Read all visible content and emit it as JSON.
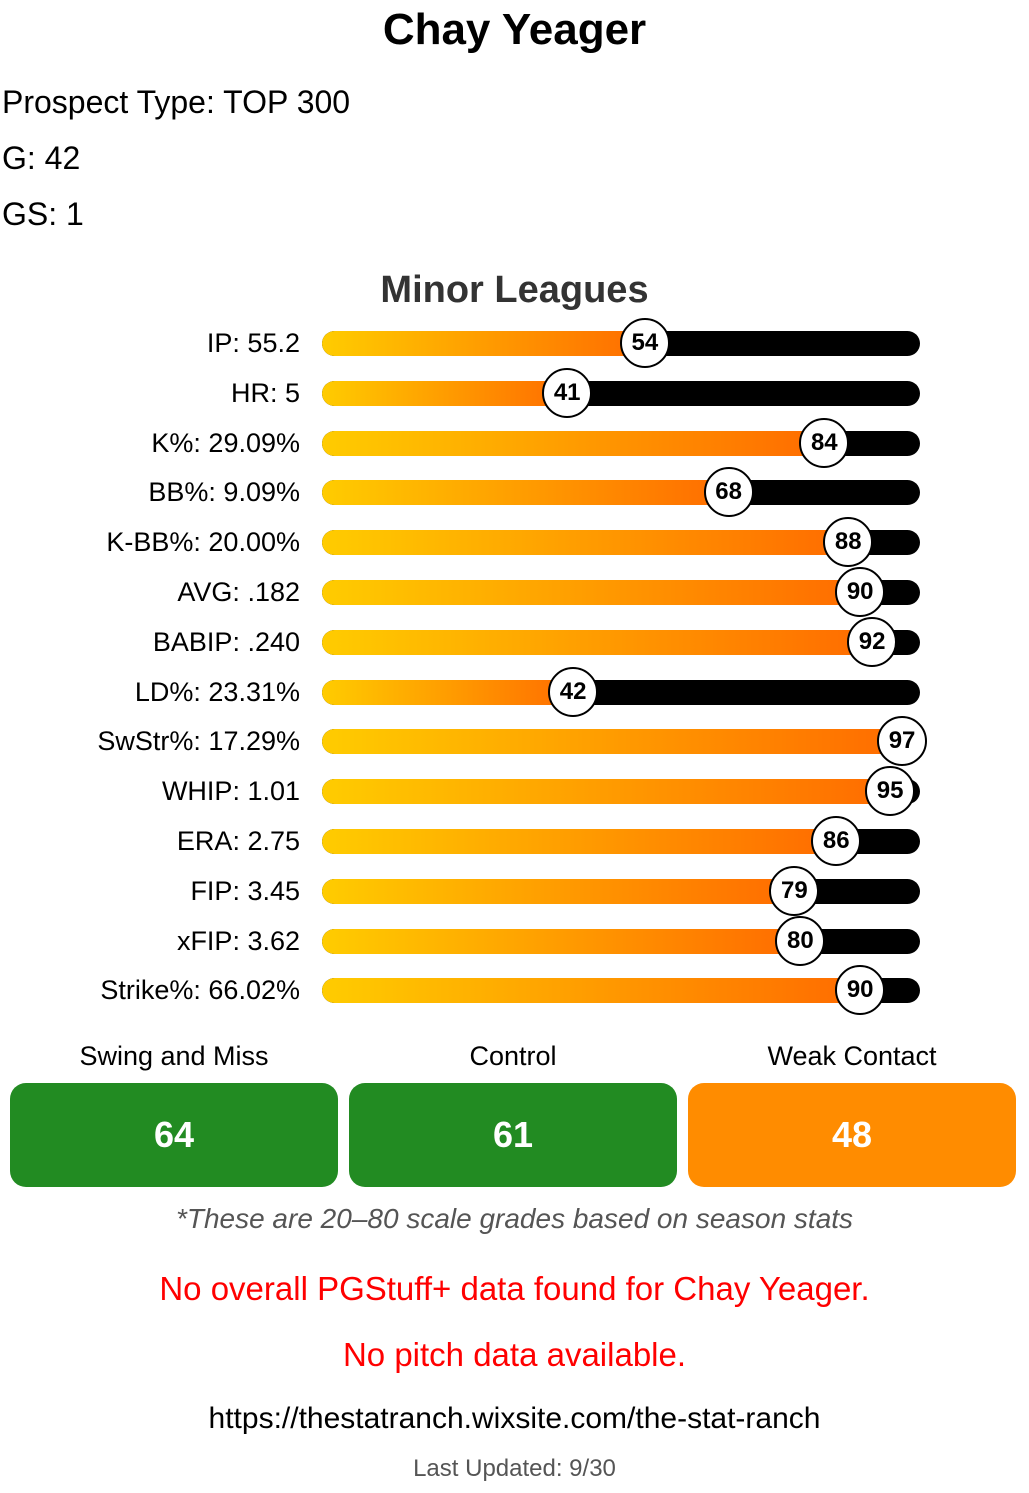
{
  "player": {
    "name": "Chay Yeager",
    "prospect_type": "Prospect Type: TOP 300",
    "games": "G: 42",
    "games_started": "GS: 1"
  },
  "chart_data": {
    "type": "bar",
    "title": "Minor Leagues",
    "xlim": [
      0,
      100
    ],
    "metrics": [
      {
        "label": "IP: 55.2",
        "percentile": 54
      },
      {
        "label": "HR: 5",
        "percentile": 41
      },
      {
        "label": "K%: 29.09%",
        "percentile": 84
      },
      {
        "label": "BB%: 9.09%",
        "percentile": 68
      },
      {
        "label": "K-BB%: 20.00%",
        "percentile": 88
      },
      {
        "label": "AVG: .182",
        "percentile": 90
      },
      {
        "label": "BABIP: .240",
        "percentile": 92
      },
      {
        "label": "LD%: 23.31%",
        "percentile": 42
      },
      {
        "label": "SwStr%: 17.29%",
        "percentile": 97
      },
      {
        "label": "WHIP: 1.01",
        "percentile": 95
      },
      {
        "label": "ERA: 2.75",
        "percentile": 86
      },
      {
        "label": "FIP: 3.45",
        "percentile": 79
      },
      {
        "label": "xFIP: 3.62",
        "percentile": 80
      },
      {
        "label": "Strike%: 66.02%",
        "percentile": 90
      }
    ]
  },
  "grades": [
    {
      "label": "Swing and Miss",
      "value": "64",
      "color": "#228b22"
    },
    {
      "label": "Control",
      "value": "61",
      "color": "#228b22"
    },
    {
      "label": "Weak Contact",
      "value": "48",
      "color": "#ff8c00"
    }
  ],
  "footnote": "*These are 20–80 scale grades based on season stats",
  "notices": {
    "pgstuff": "No overall PGStuff+ data found for Chay Yeager.",
    "pitch": "No pitch data available."
  },
  "colors": {
    "fill_start": "#ffcc00",
    "fill_end": "#ff6a00",
    "track": "#000000",
    "notice": "#ff0000"
  },
  "footer": {
    "url": "https://thestatranch.wixsite.com/the-stat-ranch",
    "last_updated": "Last Updated: 9/30"
  }
}
